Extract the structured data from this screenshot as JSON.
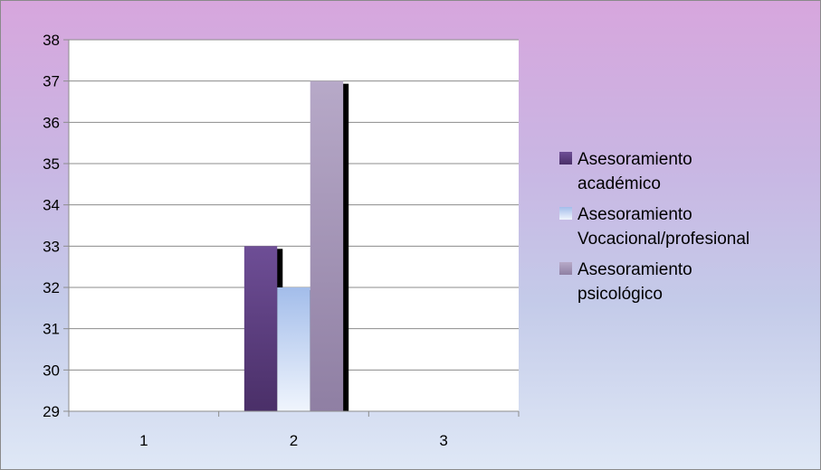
{
  "chart_data": {
    "type": "bar",
    "categories": [
      "1",
      "2",
      "3"
    ],
    "series": [
      {
        "name": "Asesoramiento académico",
        "legend_lines": [
          "Asesoramiento",
          "académico"
        ],
        "color": "#5a3a7e",
        "values": [
          null,
          33,
          null
        ]
      },
      {
        "name": "Asesoramiento Vocacional/profesional",
        "legend_lines": [
          "Asesoramiento",
          "Vocacional/profesional"
        ],
        "color": "#a9c3ec",
        "values": [
          null,
          32,
          null
        ]
      },
      {
        "name": "Asesoramiento psicológico",
        "legend_lines": [
          "Asesoramiento",
          "psicológico"
        ],
        "color": "#a898b8",
        "values": [
          null,
          37,
          null
        ]
      }
    ],
    "ylim": [
      29,
      38
    ],
    "yticks": [
      29,
      30,
      31,
      32,
      33,
      34,
      35,
      36,
      37,
      38
    ],
    "grid": true,
    "legend": "right"
  }
}
